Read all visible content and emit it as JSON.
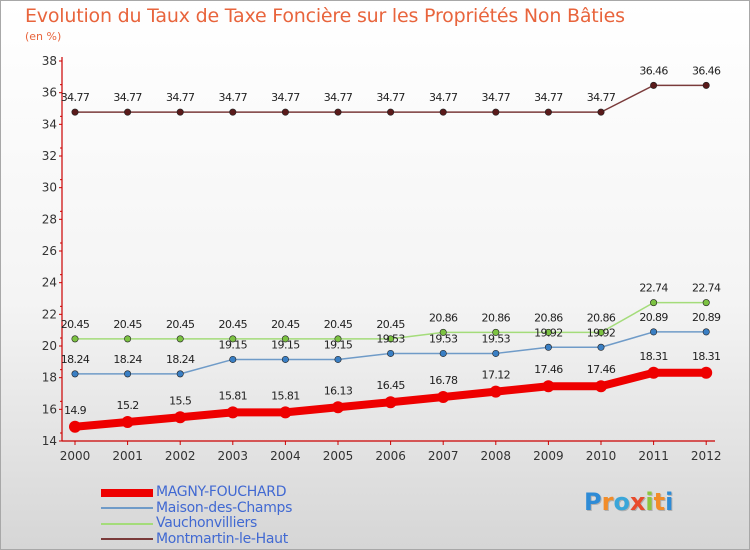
{
  "title": "Evolution du Taux de Taxe Foncière sur les Propriétés Non Bâties",
  "unit": "(en %)",
  "logo": {
    "text": "Proxiti",
    "letters": [
      "P",
      "r",
      "o",
      "x",
      "i",
      "t",
      "i"
    ],
    "colors": [
      "#2e8bd6",
      "#f28c28",
      "#3aa6d9",
      "#e84b2c",
      "#8dc63f",
      "#f28c28",
      "#2e8bd6"
    ]
  },
  "chart_data": {
    "type": "line",
    "x": [
      "2000",
      "2001",
      "2002",
      "2003",
      "2004",
      "2005",
      "2006",
      "2007",
      "2008",
      "2009",
      "2010",
      "2011",
      "2012"
    ],
    "ylim": [
      14,
      38
    ],
    "yticks": [
      14,
      16,
      18,
      20,
      22,
      24,
      26,
      28,
      30,
      32,
      34,
      36,
      38
    ],
    "grid": false,
    "legend_position": "bottom-left",
    "series": [
      {
        "name": "MAGNY-FOUCHARD",
        "color": "#ee0000",
        "width": 8,
        "values": [
          14.9,
          15.2,
          15.5,
          15.81,
          15.81,
          16.13,
          16.45,
          16.78,
          17.12,
          17.46,
          17.46,
          18.31,
          18.31
        ],
        "labels": [
          "14.9",
          "15.2",
          "15.5",
          "15.81",
          "15.81",
          "16.13",
          "16.45",
          "16.78",
          "17.12",
          "17.46",
          "17.46",
          "18.31",
          "18.31"
        ]
      },
      {
        "name": "Maison-des-Champs",
        "color": "#6f9bc8",
        "marker": "#3a7fc4",
        "width": 1.5,
        "values": [
          18.24,
          18.24,
          18.24,
          19.15,
          19.15,
          19.15,
          19.53,
          19.53,
          19.53,
          19.92,
          19.92,
          20.89,
          20.89
        ],
        "labels": [
          "18.24",
          "18.24",
          "18.24",
          "19.15",
          "19.15",
          "19.15",
          "19.53",
          "19.53",
          "19.53",
          "19.92",
          "19.92",
          "20.89",
          "20.89"
        ]
      },
      {
        "name": "Vauchonvilliers",
        "color": "#a4dc7a",
        "marker": "#7cc242",
        "width": 1.5,
        "values": [
          20.45,
          20.45,
          20.45,
          20.45,
          20.45,
          20.45,
          20.45,
          20.86,
          20.86,
          20.86,
          20.86,
          22.74,
          22.74
        ],
        "labels": [
          "20.45",
          "20.45",
          "20.45",
          "20.45",
          "20.45",
          "20.45",
          "20.45",
          "20.86",
          "20.86",
          "20.86",
          "20.86",
          "22.74",
          "22.74"
        ]
      },
      {
        "name": "Montmartin-le-Haut",
        "color": "#7a3b3b",
        "marker": "#5a1a1a",
        "width": 1.5,
        "values": [
          34.77,
          34.77,
          34.77,
          34.77,
          34.77,
          34.77,
          34.77,
          34.77,
          34.77,
          34.77,
          34.77,
          36.46,
          36.46
        ],
        "labels": [
          "34.77",
          "34.77",
          "34.77",
          "34.77",
          "34.77",
          "34.77",
          "34.77",
          "34.77",
          "34.77",
          "34.77",
          "34.77",
          "36.46",
          "36.46"
        ]
      }
    ]
  }
}
